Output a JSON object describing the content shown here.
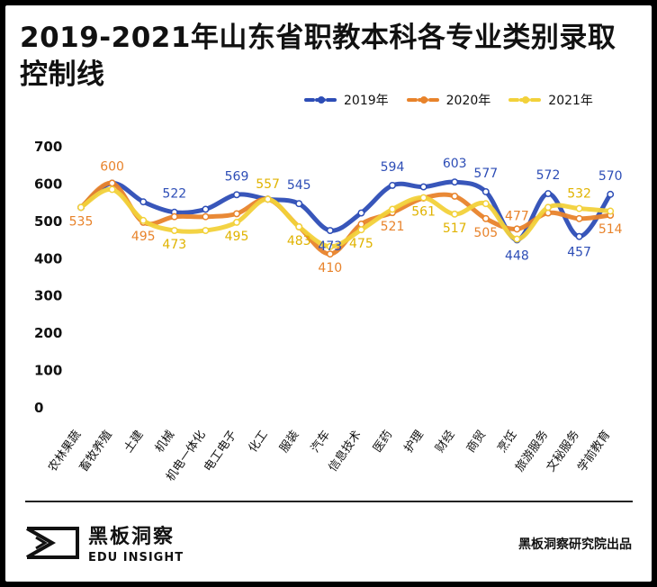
{
  "title": "2019-2021年山东省职教本科各专业类别录取控制线",
  "credit": "黑板洞察研究院出品",
  "brand": {
    "name_cn": "黑板洞察",
    "name_en": "EDU INSIGHT"
  },
  "chart_data": {
    "type": "line",
    "categories": [
      "农林果蔬",
      "畜牧养殖",
      "土建",
      "机械",
      "机电一体化",
      "电工电子",
      "化工",
      "服装",
      "汽车",
      "信息技术",
      "医药",
      "护理",
      "财经",
      "商贸",
      "烹饪",
      "旅游服务",
      "文秘服务",
      "学前教育"
    ],
    "ylim": [
      0,
      700
    ],
    "yticks": [
      0,
      100,
      200,
      300,
      400,
      500,
      600,
      700
    ],
    "series": [
      {
        "name": "2019年",
        "color": "#2d4db6",
        "values": [
          535,
          600,
          550,
          522,
          530,
          569,
          557,
          545,
          473,
          520,
          594,
          590,
          603,
          577,
          448,
          572,
          457,
          570
        ],
        "labels": [
          null,
          null,
          null,
          "522",
          null,
          "569",
          null,
          "545",
          "473",
          null,
          "594",
          null,
          "603",
          "577",
          "448",
          "572",
          "457",
          "570"
        ]
      },
      {
        "name": "2020年",
        "color": "#e8832b",
        "values": [
          535,
          600,
          495,
          510,
          510,
          518,
          557,
          483,
          410,
          490,
          521,
          560,
          565,
          505,
          477,
          520,
          505,
          514
        ],
        "labels": [
          "535",
          "600",
          "495",
          null,
          null,
          null,
          null,
          null,
          "410",
          null,
          "521",
          null,
          null,
          "505",
          "477",
          null,
          null,
          "514"
        ]
      },
      {
        "name": "2021年",
        "color": "#f2d13a",
        "values": [
          535,
          583,
          500,
          473,
          473,
          495,
          557,
          483,
          430,
          475,
          530,
          561,
          517,
          545,
          450,
          535,
          532,
          525
        ],
        "labels": [
          null,
          null,
          null,
          "473",
          null,
          "495",
          "557",
          "483",
          null,
          "475",
          null,
          "561",
          "517",
          null,
          null,
          null,
          "532",
          null
        ]
      }
    ]
  }
}
